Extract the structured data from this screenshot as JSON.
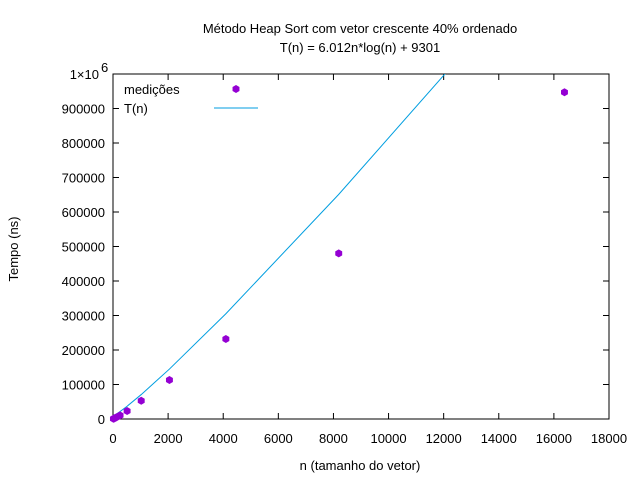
{
  "chart_data": {
    "type": "scatter",
    "title": "Método Heap Sort com vetor crescente 40% ordenado",
    "subtitle": "T(n) = 6.012n*log(n) + 9301",
    "xlabel": "n (tamanho do vetor)",
    "ylabel": "Tempo (ns)",
    "xlim": [
      0,
      18000
    ],
    "ylim": [
      0,
      1000000
    ],
    "x_ticks": [
      0,
      2000,
      4000,
      6000,
      8000,
      10000,
      12000,
      14000,
      16000,
      18000
    ],
    "y_ticks": [
      0,
      100000,
      200000,
      300000,
      400000,
      500000,
      600000,
      700000,
      800000,
      900000
    ],
    "y_top_label_base": "1×10",
    "y_top_label_exp": "6",
    "legend_position": "top-left",
    "grid": false,
    "series": [
      {
        "name": "medições",
        "kind": "points",
        "color": "#9400d3",
        "x": [
          16,
          32,
          64,
          128,
          256,
          512,
          1024,
          2048,
          4096,
          8192,
          16384
        ],
        "y": [
          600,
          1200,
          2500,
          5000,
          10500,
          23000,
          53000,
          113000,
          232000,
          480000,
          947000
        ]
      },
      {
        "name": "T(n)",
        "kind": "line",
        "color": "#009ee0",
        "x": [
          16,
          32,
          64,
          128,
          256,
          512,
          1024,
          2048,
          4096,
          8192,
          16384
        ],
        "y": [
          9701,
          10263,
          11610,
          14688,
          21611,
          36998,
          70852,
          144742,
          305111,
          651040,
          1393000
        ]
      }
    ]
  }
}
